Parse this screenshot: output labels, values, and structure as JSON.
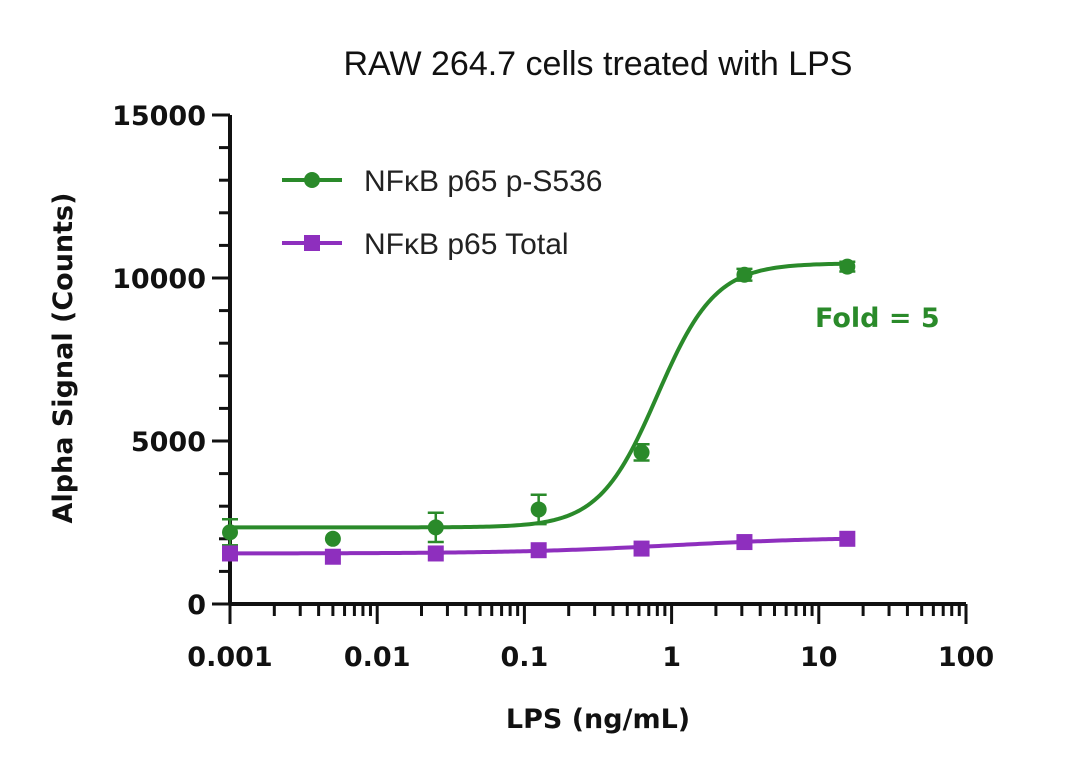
{
  "chart_data": {
    "type": "scatter",
    "title": "RAW 264.7 cells treated with LPS",
    "xlabel": "LPS (ng/mL)",
    "ylabel": "Alpha Signal (Counts)",
    "xscale": "log",
    "xlim": [
      0.001,
      100
    ],
    "ylim": [
      0,
      15000
    ],
    "x_ticks": [
      0.001,
      0.01,
      0.1,
      1,
      10,
      100
    ],
    "x_tick_labels": [
      "0.001",
      "0.01",
      "0.1",
      "1",
      "10",
      "100"
    ],
    "y_ticks": [
      0,
      5000,
      10000,
      15000
    ],
    "y_tick_labels": [
      "0",
      "5000",
      "10000",
      "15000"
    ],
    "grid": false,
    "legend_position": "top-left",
    "fit": "sigmoidal",
    "series": [
      {
        "name": "NFκB p65 p-S536",
        "color": "#2a8a2a",
        "marker": "circle",
        "x": [
          0.001,
          0.005,
          0.025,
          0.125,
          0.625,
          3.125,
          15.625
        ],
        "y": [
          2200,
          2000,
          2350,
          2900,
          4650,
          10100,
          10350
        ],
        "error": [
          400,
          0,
          450,
          450,
          250,
          180,
          150
        ],
        "fit_params": {
          "bottom": 2350,
          "top": 10450,
          "ec50": 0.8,
          "hill": 2.2
        }
      },
      {
        "name": "NFκB p65 Total",
        "color": "#8e2fbe",
        "marker": "square",
        "x": [
          0.001,
          0.005,
          0.025,
          0.125,
          0.625,
          3.125,
          15.625
        ],
        "y": [
          1550,
          1450,
          1550,
          1650,
          1700,
          1900,
          2000
        ],
        "error": [
          0,
          0,
          0,
          0,
          0,
          0,
          0
        ],
        "fit_params": {
          "bottom": 1550,
          "top": 2050,
          "ec50": 1.0,
          "hill": 0.8
        }
      }
    ],
    "annotations": [
      {
        "text": "Fold = 5",
        "color": "#2a8a2a",
        "x": 25,
        "y": 8500
      }
    ]
  }
}
